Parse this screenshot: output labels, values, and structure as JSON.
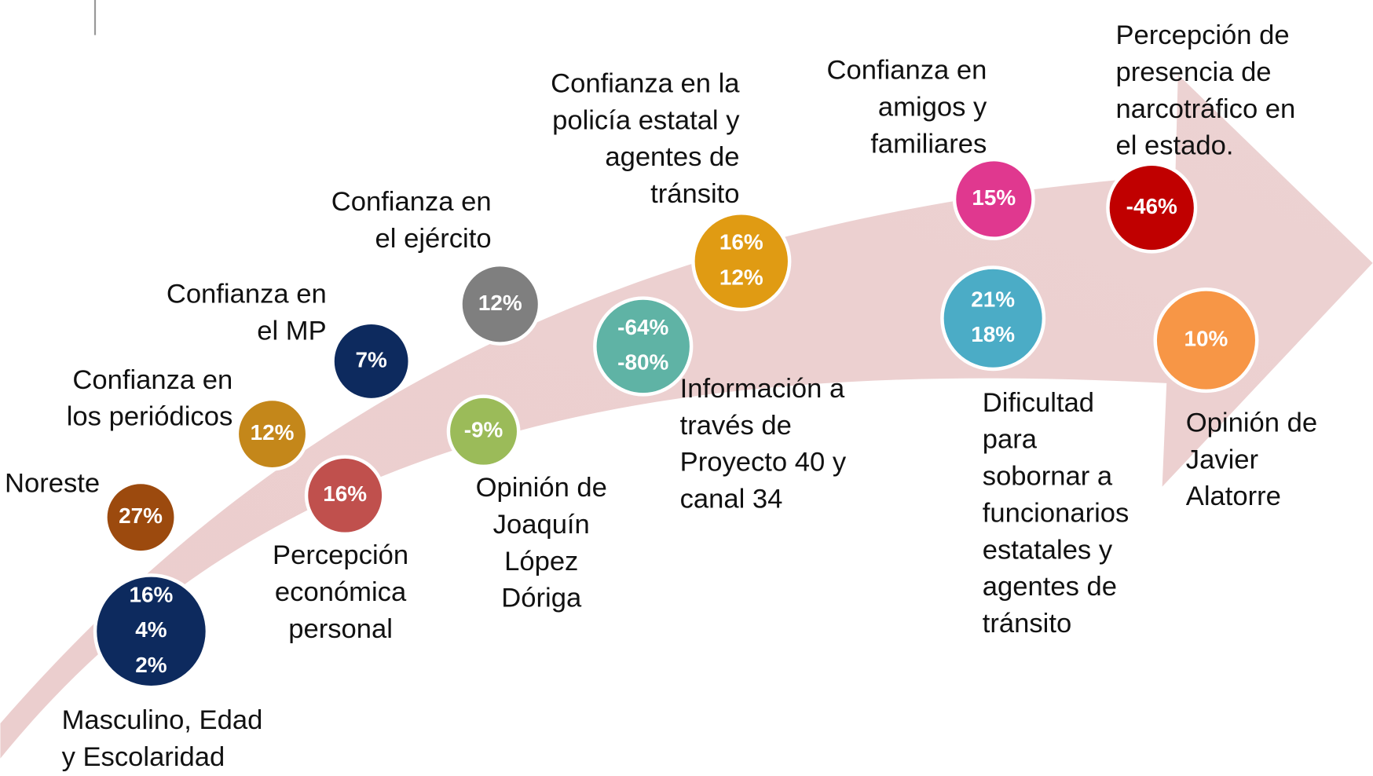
{
  "nodes": [
    {
      "label": [
        "Masculino, Edad",
        "y Escolaridad"
      ],
      "values": [
        "16%",
        "4%",
        "2%"
      ]
    },
    {
      "label": [
        "Noreste"
      ],
      "values": [
        "27%"
      ]
    },
    {
      "label": [
        "Confianza en",
        "los periódicos"
      ],
      "values": [
        "12%"
      ]
    },
    {
      "label": [
        "Percepción",
        "económica",
        "personal"
      ],
      "values": [
        "16%"
      ]
    },
    {
      "label": [
        "Confianza en",
        "el MP"
      ],
      "values": [
        "7%"
      ]
    },
    {
      "label": [
        "Confianza en",
        "el ejército"
      ],
      "values": [
        "12%"
      ]
    },
    {
      "label": [
        "Opinión de",
        "Joaquín",
        "López",
        "Dóriga"
      ],
      "values": [
        "-9%"
      ]
    },
    {
      "label": [
        "Información a",
        "través de",
        "Proyecto 40 y",
        "canal 34"
      ],
      "values": [
        "-64%",
        "-80%"
      ]
    },
    {
      "label": [
        "Confianza en la",
        "policía estatal y",
        "agentes de",
        "tránsito"
      ],
      "values": [
        "16%",
        "12%"
      ]
    },
    {
      "label": [
        "Confianza en",
        "amigos y",
        "familiares"
      ],
      "values": [
        "15%"
      ]
    },
    {
      "label": [
        "Dificultad",
        "para",
        "sobornar a",
        "funcionarios",
        "estatales y",
        "agentes de",
        "tránsito"
      ],
      "values": [
        "21%",
        "18%"
      ]
    },
    {
      "label": [
        "Percepción de",
        "presencia de",
        "narcotráfico en",
        "el estado."
      ],
      "values": [
        "-46%"
      ]
    },
    {
      "label": [
        "Opinión de",
        "Javier",
        "Alatorre"
      ],
      "values": [
        "10%"
      ]
    }
  ]
}
